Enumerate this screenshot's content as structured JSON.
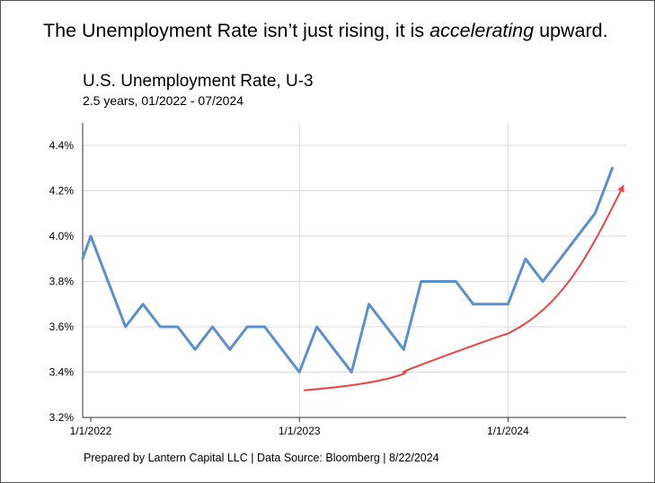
{
  "headline": {
    "before": "The Unemployment Rate isn’t just rising, it is ",
    "emphasis": "accelerating",
    "after": " upward."
  },
  "chart_data": {
    "type": "line",
    "title": "U.S. Unemployment Rate, U-3",
    "subtitle": "2.5 years, 01/2022 - 07/2024",
    "xlabel": "",
    "ylabel": "",
    "ylim": [
      3.2,
      4.4
    ],
    "yticks": [
      3.2,
      3.4,
      3.6,
      3.8,
      4.0,
      4.2,
      4.4
    ],
    "ytick_labels": [
      "3.2%",
      "3.4%",
      "3.6%",
      "3.8%",
      "4.0%",
      "4.2%",
      "4.4%"
    ],
    "xticks": [
      "1/1/2022",
      "1/1/2023",
      "1/1/2024"
    ],
    "grid": true,
    "series": [
      {
        "name": "U.S. Unemployment Rate, U-3",
        "color": "#5b8fcf",
        "x": [
          "12/2021",
          "1/2022",
          "2/2022",
          "3/2022",
          "4/2022",
          "5/2022",
          "6/2022",
          "7/2022",
          "8/2022",
          "9/2022",
          "10/2022",
          "11/2022",
          "12/2022",
          "1/2023",
          "2/2023",
          "3/2023",
          "4/2023",
          "5/2023",
          "6/2023",
          "7/2023",
          "8/2023",
          "9/2023",
          "10/2023",
          "11/2023",
          "12/2023",
          "1/2024",
          "2/2024",
          "3/2024",
          "4/2024",
          "5/2024",
          "6/2024",
          "7/2024"
        ],
        "values": [
          3.9,
          4.0,
          3.8,
          3.6,
          3.7,
          3.6,
          3.6,
          3.5,
          3.6,
          3.5,
          3.6,
          3.6,
          3.5,
          3.4,
          3.6,
          3.5,
          3.4,
          3.7,
          3.6,
          3.5,
          3.8,
          3.8,
          3.8,
          3.7,
          3.7,
          3.7,
          3.9,
          3.8,
          3.9,
          4.0,
          4.1,
          4.3
        ]
      },
      {
        "name": "trend arrow",
        "color": "#ee4444",
        "x": [
          "1/2023",
          "7/2023",
          "1/2024",
          "7/2024"
        ],
        "values": [
          3.32,
          3.4,
          3.57,
          4.22
        ]
      }
    ]
  },
  "footer": "Prepared by Lantern Capital LLC | Data Source: Bloomberg | 8/22/2024"
}
